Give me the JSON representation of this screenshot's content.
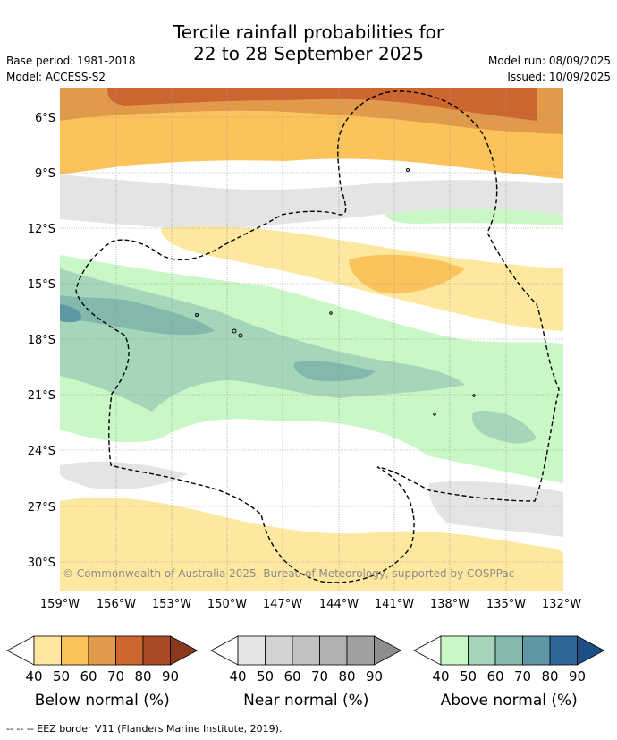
{
  "title_line1": "Tercile rainfall probabilities for",
  "title_line2": "22 to 28 September 2025",
  "meta": {
    "base_period": "Base period: 1981-2018",
    "model": "Model: ACCESS-S2",
    "model_run": "Model run: 08/09/2025",
    "issued": "Issued: 10/09/2025"
  },
  "lat_labels": [
    "6°S",
    "9°S",
    "12°S",
    "15°S",
    "18°S",
    "21°S",
    "24°S",
    "27°S",
    "30°S"
  ],
  "lon_labels": [
    "159°W",
    "156°W",
    "153°W",
    "150°W",
    "147°W",
    "144°W",
    "141°W",
    "138°W",
    "135°W",
    "132°W"
  ],
  "copyright": "© Commonwealth of Australia 2025, Bureau of Meteorology, supported by COSPPac",
  "legends": [
    {
      "id": "below",
      "title": "Below normal (%)",
      "colors": [
        "#ffffff",
        "#fee8a0",
        "#fdc35b",
        "#e09a4a",
        "#cd6531",
        "#aa4a26",
        "#8a3a1c"
      ],
      "ticks": [
        "40",
        "50",
        "60",
        "70",
        "80",
        "90"
      ]
    },
    {
      "id": "near",
      "title": "Near normal (%)",
      "colors": [
        "#ffffff",
        "#e4e4e4",
        "#d2d2d2",
        "#c1c1c1",
        "#b1b1b1",
        "#a0a0a0",
        "#8e8e8e"
      ],
      "ticks": [
        "40",
        "50",
        "60",
        "70",
        "80",
        "90"
      ]
    },
    {
      "id": "above",
      "title": "Above normal (%)",
      "colors": [
        "#ffffff",
        "#c9f7c5",
        "#a6d6b9",
        "#83b8ad",
        "#5f97a7",
        "#2f6699",
        "#1d4f85"
      ],
      "ticks": [
        "40",
        "50",
        "60",
        "70",
        "80",
        "90"
      ]
    }
  ],
  "footnote": "-- -- -- EEZ border V11 (Flanders Marine Institute, 2019)."
}
